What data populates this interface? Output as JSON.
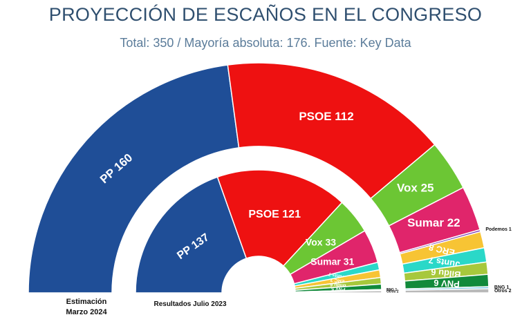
{
  "title": "PROYECCIÓN DE ESCAÑOS EN EL CONGRESO",
  "subtitle": "Total: 350 / Mayoría absoluta: 176. Fuente: Key Data",
  "chart_data": {
    "type": "pie",
    "variant": "nested semicircle (parliament)",
    "total": 350,
    "rings": [
      {
        "name": "Estimación Marzo 2024",
        "caption_line1": "Estimación",
        "caption_line2": "Marzo 2024",
        "ring": "outer",
        "slices": [
          {
            "label": "PP",
            "value": 160,
            "color": "#1f4e97"
          },
          {
            "label": "PSOE",
            "value": 112,
            "color": "#ee1111"
          },
          {
            "label": "Vox",
            "value": 25,
            "color": "#6cc634"
          },
          {
            "label": "Sumar",
            "value": 22,
            "color": "#e0256b"
          },
          {
            "label": "Podemos",
            "value": 1,
            "color": "#7a3bb5"
          },
          {
            "label": "ERC",
            "value": 8,
            "color": "#f7c434"
          },
          {
            "label": "Junts",
            "value": 7,
            "color": "#2ad8c8"
          },
          {
            "label": "Bildu",
            "value": 6,
            "color": "#a7c83c"
          },
          {
            "label": "PNV",
            "value": 6,
            "color": "#118a3b"
          },
          {
            "label": "BNG",
            "value": 1,
            "color": "#74c6e4"
          },
          {
            "label": "Otros",
            "value": 2,
            "color": "#b9b9b9"
          }
        ]
      },
      {
        "name": "Resultados Julio 2023",
        "caption_line1": "Resultados Julio 2023",
        "ring": "inner",
        "slices": [
          {
            "label": "PP",
            "value": 137,
            "color": "#1f4e97"
          },
          {
            "label": "PSOE",
            "value": 121,
            "color": "#ee1111"
          },
          {
            "label": "Vox",
            "value": 33,
            "color": "#6cc634"
          },
          {
            "label": "Sumar",
            "value": 31,
            "color": "#e0256b"
          },
          {
            "label": "Junts",
            "value": 7,
            "color": "#2ad8c8"
          },
          {
            "label": "ERC",
            "value": 7,
            "color": "#f7c434"
          },
          {
            "label": "Bildu",
            "value": 6,
            "color": "#a7c83c"
          },
          {
            "label": "PNV",
            "value": 5,
            "color": "#118a3b"
          },
          {
            "label": "BNG",
            "value": 1,
            "color": "#74c6e4"
          },
          {
            "label": "Otros",
            "value": 2,
            "color": "#b9b9b9"
          }
        ]
      }
    ]
  }
}
